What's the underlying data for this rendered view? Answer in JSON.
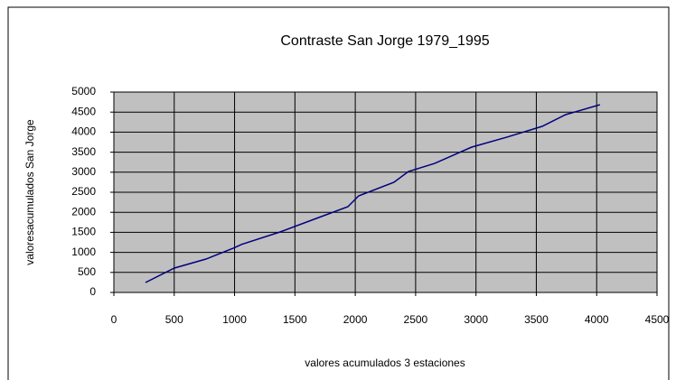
{
  "chart_data": {
    "type": "line",
    "title": "Contraste San Jorge 1979_1995",
    "x_label": "valores acumulados  3 estaciones",
    "y_label": "valoresacumulados  San  Jorge",
    "x": [
      262,
      501,
      763,
      988,
      1060,
      1377,
      1677,
      1939,
      2028,
      2320,
      2440,
      2657,
      2964,
      3250,
      3548,
      3743,
      4027
    ],
    "series": [
      {
        "color": "#000080",
        "values": [
          248,
          608,
          833,
          1103,
          1200,
          1509,
          1847,
          2140,
          2410,
          2748,
          3018,
          3220,
          3626,
          3870,
          4144,
          4437,
          4685
        ]
      }
    ],
    "xlim": [
      0,
      4500
    ],
    "xticks": [
      0,
      500,
      1000,
      1500,
      2000,
      2500,
      3000,
      3500,
      4000,
      4500
    ],
    "ylim": [
      0,
      5000
    ],
    "yticks": [
      0,
      500,
      1000,
      1500,
      2000,
      2500,
      3000,
      3500,
      4000,
      4500,
      5000
    ],
    "grid": true,
    "plot_background": "#c0c0c0"
  }
}
